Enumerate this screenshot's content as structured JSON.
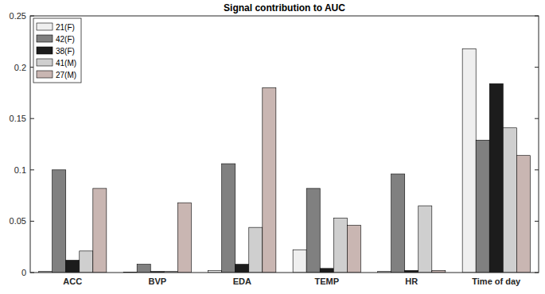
{
  "chart_data": {
    "type": "bar",
    "title": "Signal contribution to AUC",
    "categories": [
      "ACC",
      "BVP",
      "EDA",
      "TEMP",
      "HR",
      "Time of day"
    ],
    "series": [
      {
        "name": "21(F)",
        "color": "#efefef",
        "values": [
          0.001,
          0.0005,
          0.002,
          0.022,
          0.001,
          0.218
        ]
      },
      {
        "name": "42(F)",
        "color": "#808080",
        "values": [
          0.1,
          0.008,
          0.106,
          0.082,
          0.096,
          0.129
        ]
      },
      {
        "name": "38(F)",
        "color": "#1c1c1c",
        "values": [
          0.012,
          0.001,
          0.008,
          0.004,
          0.002,
          0.184
        ]
      },
      {
        "name": "41(M)",
        "color": "#cfcfcf",
        "values": [
          0.021,
          0.001,
          0.044,
          0.053,
          0.065,
          0.141
        ]
      },
      {
        "name": "27(M)",
        "color": "#c9b6b2",
        "values": [
          0.082,
          0.068,
          0.18,
          0.046,
          0.002,
          0.114
        ]
      }
    ],
    "ylim": [
      0,
      0.25
    ],
    "yticks": [
      0,
      0.05,
      0.1,
      0.15,
      0.2,
      0.25
    ],
    "grid": false,
    "legend": "upper left"
  }
}
